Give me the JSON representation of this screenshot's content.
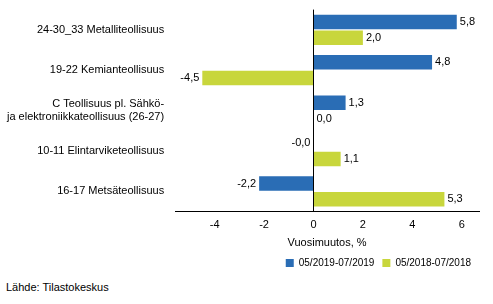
{
  "chart_data": {
    "type": "bar",
    "orientation": "horizontal",
    "categories": [
      "24-30_33 Metalliteollisuus",
      "19-22 Kemianteollisuus",
      "C Teollisuus pl. Sähkö-\nja elektroniikkateollisuus (26-27)",
      "10-11 Elintarviketeollisuus",
      "16-17 Metsäteollisuus"
    ],
    "series": [
      {
        "name": "05/2019-07/2019",
        "color": "#2a6db5",
        "values": [
          5.8,
          4.8,
          1.3,
          -0.0,
          -2.2
        ],
        "value_labels": [
          "5,8",
          "4,8",
          "1,3",
          "-0,0",
          "-2,2"
        ]
      },
      {
        "name": "05/2018-07/2018",
        "color": "#c8d63c",
        "values": [
          2.0,
          -4.5,
          0.0,
          1.1,
          5.3
        ],
        "value_labels": [
          "2,0",
          "-4,5",
          "0,0",
          "1,1",
          "5,3"
        ]
      }
    ],
    "x_label": "Vuosimuutos, %",
    "xlim": [
      -5.6,
      6.7
    ],
    "xticks": [
      -4,
      -2,
      0,
      2,
      4,
      6
    ],
    "grid": false,
    "legend": "bottom",
    "data_labels": true,
    "annotations": [
      "Lähde: Tilastokeskus"
    ]
  }
}
